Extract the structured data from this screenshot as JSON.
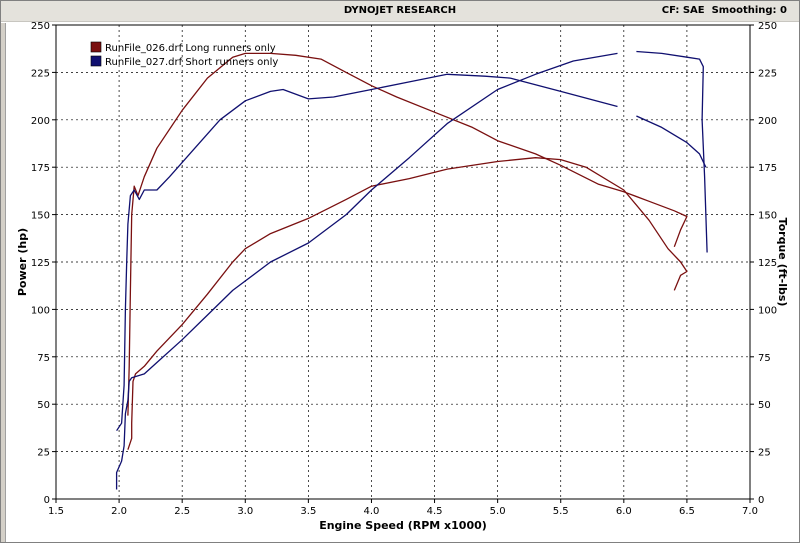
{
  "window": {
    "title": "DYNOJET RESEARCH",
    "cf_label": "CF: SAE",
    "smoothing_label": "Smoothing: 0"
  },
  "chart_data": {
    "type": "line",
    "xlabel": "Engine Speed (RPM x1000)",
    "ylabel_left": "Power (hp)",
    "ylabel_right": "Torque (ft-lbs)",
    "xlim": [
      1.5,
      7.0
    ],
    "ylim": [
      0,
      250
    ],
    "x_ticks": [
      "1.5",
      "2.0",
      "2.5",
      "3.0",
      "3.5",
      "4.0",
      "4.5",
      "5.0",
      "5.5",
      "6.0",
      "6.5",
      "7.0"
    ],
    "y_ticks": [
      "0",
      "25",
      "50",
      "75",
      "100",
      "125",
      "150",
      "175",
      "200",
      "225",
      "250"
    ],
    "grid": true,
    "legend_placement": "top-left",
    "legend": [
      {
        "label": "RunFile_026.drf Long runners only",
        "color": "#7a1010"
      },
      {
        "label": "RunFile_027.drf Short runners only",
        "color": "#101070"
      }
    ],
    "series": [
      {
        "name": "RunFile_026.drf Long runners only",
        "measure": "Torque",
        "color": "#7a1010",
        "points": [
          [
            2.07,
            44
          ],
          [
            2.08,
            70
          ],
          [
            2.09,
            110
          ],
          [
            2.1,
            150
          ],
          [
            2.12,
            165
          ],
          [
            2.15,
            160
          ],
          [
            2.2,
            170
          ],
          [
            2.3,
            185
          ],
          [
            2.5,
            205
          ],
          [
            2.7,
            222
          ],
          [
            2.9,
            233
          ],
          [
            3.0,
            235
          ],
          [
            3.2,
            235
          ],
          [
            3.4,
            234
          ],
          [
            3.6,
            232
          ],
          [
            3.8,
            225
          ],
          [
            4.0,
            218
          ],
          [
            4.2,
            212
          ],
          [
            4.5,
            204
          ],
          [
            4.8,
            196
          ],
          [
            5.0,
            189
          ],
          [
            5.3,
            182
          ],
          [
            5.5,
            176
          ],
          [
            5.8,
            166
          ],
          [
            6.0,
            162
          ],
          [
            6.2,
            157
          ],
          [
            6.4,
            152
          ],
          [
            6.5,
            149
          ],
          [
            6.45,
            142
          ],
          [
            6.4,
            133
          ]
        ]
      },
      {
        "name": "RunFile_026.drf Long runners only",
        "measure": "Power",
        "color": "#7a1010",
        "points": [
          [
            2.07,
            26
          ],
          [
            2.1,
            32
          ],
          [
            2.1,
            40
          ],
          [
            2.11,
            62
          ],
          [
            2.13,
            66
          ],
          [
            2.2,
            70
          ],
          [
            2.3,
            78
          ],
          [
            2.5,
            92
          ],
          [
            2.7,
            108
          ],
          [
            2.9,
            125
          ],
          [
            3.0,
            132
          ],
          [
            3.2,
            140
          ],
          [
            3.5,
            148
          ],
          [
            3.8,
            158
          ],
          [
            4.0,
            165
          ],
          [
            4.3,
            169
          ],
          [
            4.6,
            174
          ],
          [
            5.0,
            178
          ],
          [
            5.3,
            180
          ],
          [
            5.5,
            179
          ],
          [
            5.7,
            175
          ],
          [
            6.0,
            163
          ],
          [
            6.2,
            147
          ],
          [
            6.35,
            132
          ],
          [
            6.45,
            125
          ],
          [
            6.5,
            120
          ],
          [
            6.45,
            118
          ],
          [
            6.4,
            110
          ]
        ]
      },
      {
        "name": "RunFile_027.drf Short runners only",
        "measure": "Torque",
        "color": "#101070",
        "points": [
          [
            1.98,
            36
          ],
          [
            2.02,
            40
          ],
          [
            2.04,
            60
          ],
          [
            2.05,
            100
          ],
          [
            2.06,
            125
          ],
          [
            2.07,
            145
          ],
          [
            2.09,
            160
          ],
          [
            2.12,
            163
          ],
          [
            2.16,
            158
          ],
          [
            2.2,
            163
          ],
          [
            2.3,
            163
          ],
          [
            2.4,
            170
          ],
          [
            2.6,
            185
          ],
          [
            2.8,
            200
          ],
          [
            3.0,
            210
          ],
          [
            3.2,
            215
          ],
          [
            3.3,
            216
          ],
          [
            3.5,
            211
          ],
          [
            3.7,
            212
          ],
          [
            4.0,
            216
          ],
          [
            4.3,
            220
          ],
          [
            4.6,
            224
          ],
          [
            4.9,
            223
          ],
          [
            5.1,
            222
          ],
          [
            5.5,
            215
          ],
          [
            5.95,
            207
          ],
          [
            6.05,
            null
          ],
          [
            6.1,
            202
          ],
          [
            6.3,
            196
          ],
          [
            6.5,
            188
          ],
          [
            6.6,
            182
          ],
          [
            6.65,
            175
          ]
        ]
      },
      {
        "name": "RunFile_027.drf Short runners only",
        "measure": "Power",
        "color": "#101070",
        "points": [
          [
            1.98,
            5
          ],
          [
            1.98,
            14
          ],
          [
            2.02,
            20
          ],
          [
            2.04,
            28
          ],
          [
            2.05,
            45
          ],
          [
            2.07,
            52
          ],
          [
            2.08,
            62
          ],
          [
            2.1,
            64
          ],
          [
            2.2,
            66
          ],
          [
            2.3,
            72
          ],
          [
            2.5,
            84
          ],
          [
            2.7,
            97
          ],
          [
            2.9,
            110
          ],
          [
            3.2,
            125
          ],
          [
            3.5,
            135
          ],
          [
            3.8,
            150
          ],
          [
            4.0,
            163
          ],
          [
            4.3,
            180
          ],
          [
            4.6,
            198
          ],
          [
            5.0,
            216
          ],
          [
            5.3,
            224
          ],
          [
            5.6,
            231
          ],
          [
            5.95,
            235
          ],
          [
            6.05,
            null
          ],
          [
            6.1,
            236
          ],
          [
            6.3,
            235
          ],
          [
            6.5,
            233
          ],
          [
            6.6,
            232
          ],
          [
            6.63,
            228
          ],
          [
            6.62,
            200
          ],
          [
            6.64,
            170
          ],
          [
            6.66,
            130
          ]
        ]
      }
    ]
  }
}
